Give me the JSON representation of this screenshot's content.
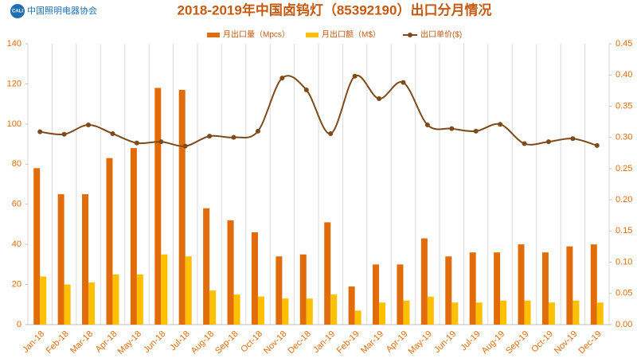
{
  "logo_abbr": "CALI",
  "logo_text": "中国照明电器协会",
  "chart_data": {
    "type": "bar-line",
    "title": "2018-2019年中国卤钨灯（85392190）出口分月情况",
    "categories": [
      "Jan-18",
      "Feb-18",
      "Mar-18",
      "Apr-18",
      "May-18",
      "Jun-18",
      "Jul-18",
      "Aug-18",
      "Sep-18",
      "Oct-18",
      "Nov-18",
      "Dec-18",
      "Jan-19",
      "Feb-19",
      "Mar-19",
      "Apr-19",
      "May-19",
      "Jun-19",
      "Jul-19",
      "Aug-19",
      "Sep-19",
      "Oct-19",
      "Nov-19",
      "Dec-19"
    ],
    "series": [
      {
        "name": "月出口量（Mpcs）",
        "type": "bar",
        "color": "#e36c0a",
        "values": [
          78,
          65,
          65,
          83,
          88,
          118,
          117,
          58,
          52,
          46,
          34,
          35,
          51,
          19,
          30,
          30,
          43,
          34,
          36,
          36,
          40,
          36,
          39,
          40
        ]
      },
      {
        "name": "月出口额（M$）",
        "type": "bar",
        "color": "#ffc000",
        "values": [
          24,
          20,
          21,
          25,
          25,
          35,
          34,
          17,
          15,
          14,
          13,
          13,
          15,
          7,
          11,
          12,
          14,
          11,
          11,
          12,
          12,
          11,
          12,
          11
        ]
      },
      {
        "name": "出口单价($)",
        "type": "line",
        "axis": "y2",
        "color": "#7f4a1a",
        "values": [
          0.309,
          0.305,
          0.32,
          0.306,
          0.291,
          0.293,
          0.286,
          0.302,
          0.3,
          0.31,
          0.395,
          0.376,
          0.306,
          0.398,
          0.362,
          0.388,
          0.32,
          0.314,
          0.31,
          0.321,
          0.29,
          0.293,
          0.298,
          0.287
        ]
      }
    ],
    "ylim": [
      0,
      140
    ],
    "yticks": [
      0,
      20,
      40,
      60,
      80,
      100,
      120,
      140
    ],
    "y2lim": [
      0,
      0.45
    ],
    "y2ticks": [
      {
        "value": 0,
        "label": "0.00"
      },
      {
        "value": 0.05,
        "label": "0.05"
      },
      {
        "value": 0.1,
        "label": "0.10"
      },
      {
        "value": 0.15,
        "label": "0.15"
      },
      {
        "value": 0.2,
        "label": "0.20"
      },
      {
        "value": 0.25,
        "label": "0.25"
      },
      {
        "value": 0.3,
        "label": "0.30"
      },
      {
        "value": 0.35,
        "label": "0.35"
      },
      {
        "value": 0.4,
        "label": "0.40"
      },
      {
        "value": 0.45,
        "label": "0.45"
      }
    ],
    "grid": true,
    "legend": "top"
  }
}
